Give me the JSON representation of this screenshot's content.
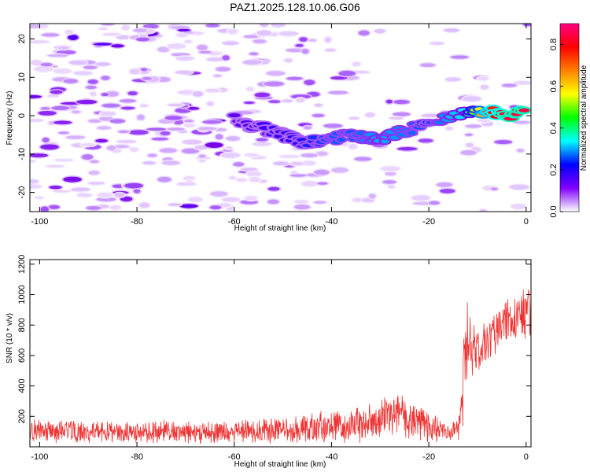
{
  "title": "PAZ1.2025.128.10.06.G06",
  "chart_data": [
    {
      "type": "heatmap",
      "xlabel": "Height of straight line (km)",
      "ylabel": "Frequency (Hz)",
      "xlim": [
        -102,
        1
      ],
      "ylim": [
        -25,
        24
      ],
      "x_ticks": [
        -100,
        -80,
        -60,
        -40,
        -20,
        0
      ],
      "x_tick_labels": [
        "-100",
        "-80",
        "-60",
        "-40",
        "-20",
        "0"
      ],
      "y_ticks": [
        -20,
        -10,
        0,
        10,
        20
      ],
      "y_tick_labels": [
        "-20",
        "-10",
        "0",
        "10",
        "20"
      ],
      "colorbar": {
        "label": "Normalized spectral amplitude",
        "range": [
          0,
          0.9
        ],
        "ticks": [
          0,
          0.2,
          0.4,
          0.6,
          0.8
        ],
        "tick_labels": [
          "0.0",
          "0.2",
          "0.4",
          "0.6",
          "0.8"
        ],
        "colors": [
          "#ffffff",
          "#8000ff",
          "#0000ff",
          "#00ffff",
          "#00ff00",
          "#ffff00",
          "#ff8000",
          "#ff0000",
          "#ff0080"
        ]
      },
      "ridge": {
        "note_points": [
          {
            "x": -60,
            "y": -1,
            "value": 0.22
          },
          {
            "x": -55,
            "y": -3,
            "value": 0.24
          },
          {
            "x": -50,
            "y": -5,
            "value": 0.25
          },
          {
            "x": -45,
            "y": -7,
            "value": 0.27
          },
          {
            "x": -40,
            "y": -6,
            "value": 0.3
          },
          {
            "x": -35,
            "y": -5,
            "value": 0.3
          },
          {
            "x": -30,
            "y": -6,
            "value": 0.35
          },
          {
            "x": -25,
            "y": -4,
            "value": 0.32
          },
          {
            "x": -20,
            "y": -2,
            "value": 0.28
          },
          {
            "x": -12,
            "y": 1,
            "value": 0.4
          },
          {
            "x": -8,
            "y": 1,
            "value": 0.75
          },
          {
            "x": -4,
            "y": 0,
            "value": 0.85
          },
          {
            "x": 0,
            "y": 1,
            "value": 0.85
          }
        ]
      }
    },
    {
      "type": "line",
      "xlabel": "Height of straight line (km)",
      "ylabel": "SNR (10 * v/v)",
      "xlim": [
        -102,
        1
      ],
      "ylim": [
        0,
        1230
      ],
      "x_ticks": [
        -100,
        -80,
        -60,
        -40,
        -20,
        0
      ],
      "x_tick_labels": [
        "-100",
        "-80",
        "-60",
        "-40",
        "-20",
        "0"
      ],
      "y_ticks": [
        200,
        400,
        600,
        800,
        1000,
        1200
      ],
      "y_tick_labels": [
        "200",
        "400",
        "600",
        "800",
        "1000",
        "1200"
      ],
      "color": "#ee3333",
      "envelope": {
        "x": [
          -102,
          -90,
          -80,
          -70,
          -60,
          -50,
          -40,
          -30,
          -27,
          -24,
          -20,
          -16,
          -14,
          -13,
          -12,
          -11,
          -10,
          -8,
          -6,
          -4,
          -2,
          0,
          1
        ],
        "mean": [
          100,
          100,
          100,
          100,
          100,
          120,
          130,
          170,
          230,
          180,
          140,
          90,
          110,
          350,
          720,
          650,
          600,
          720,
          750,
          820,
          880,
          860,
          900
        ],
        "spread": [
          70,
          70,
          70,
          70,
          75,
          90,
          100,
          130,
          160,
          130,
          100,
          50,
          80,
          300,
          300,
          220,
          180,
          140,
          140,
          140,
          150,
          150,
          150
        ]
      }
    }
  ]
}
